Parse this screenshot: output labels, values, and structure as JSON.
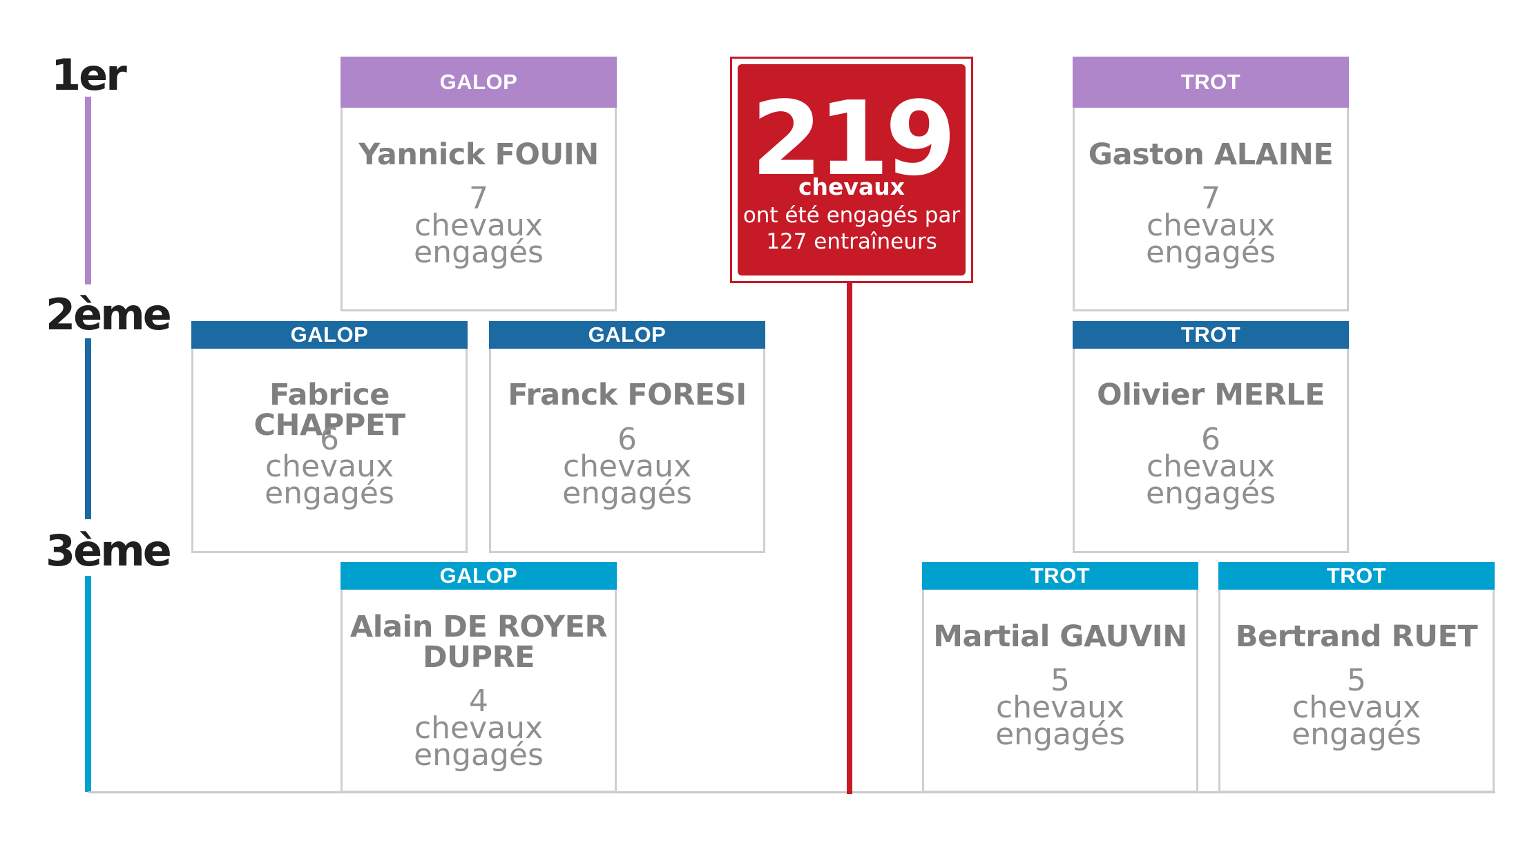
{
  "colors": {
    "rank1": "#ae86c9",
    "rank2": "#1b6aa2",
    "rank3": "#00a0cf",
    "highlight": "#c61a27",
    "card_border": "#cfcfcf",
    "text_grey": "#7f7f7f"
  },
  "ranks": [
    {
      "label": "1er"
    },
    {
      "label": "2ème"
    },
    {
      "label": "3ème"
    }
  ],
  "total": {
    "count": "219",
    "unit": "chevaux",
    "desc_line1": "ont été engagés par",
    "desc_line2": "127 entraîneurs"
  },
  "cards": [
    {
      "category": "GALOP",
      "name_line1": "Yannick FOUIN",
      "name_line2": "",
      "count": "7",
      "word1": "chevaux",
      "word2": "engagés"
    },
    {
      "category": "TROT",
      "name_line1": "Gaston ALAINE",
      "name_line2": "",
      "count": "7",
      "word1": "chevaux",
      "word2": "engagés"
    },
    {
      "category": "GALOP",
      "name_line1": "Fabrice CHAPPET",
      "name_line2": "",
      "count": "6",
      "word1": "chevaux",
      "word2": "engagés"
    },
    {
      "category": "GALOP",
      "name_line1": "Franck FORESI",
      "name_line2": "",
      "count": "6",
      "word1": "chevaux",
      "word2": "engagés"
    },
    {
      "category": "TROT",
      "name_line1": "Olivier MERLE",
      "name_line2": "",
      "count": "6",
      "word1": "chevaux",
      "word2": "engagés"
    },
    {
      "category": "GALOP",
      "name_line1": "Alain DE ROYER",
      "name_line2": "DUPRE",
      "count": "4",
      "word1": "chevaux",
      "word2": "engagés"
    },
    {
      "category": "TROT",
      "name_line1": "Martial GAUVIN",
      "name_line2": "",
      "count": "5",
      "word1": "chevaux",
      "word2": "engagés"
    },
    {
      "category": "TROT",
      "name_line1": "Bertrand RUET",
      "name_line2": "",
      "count": "5",
      "word1": "chevaux",
      "word2": "engagés"
    }
  ]
}
